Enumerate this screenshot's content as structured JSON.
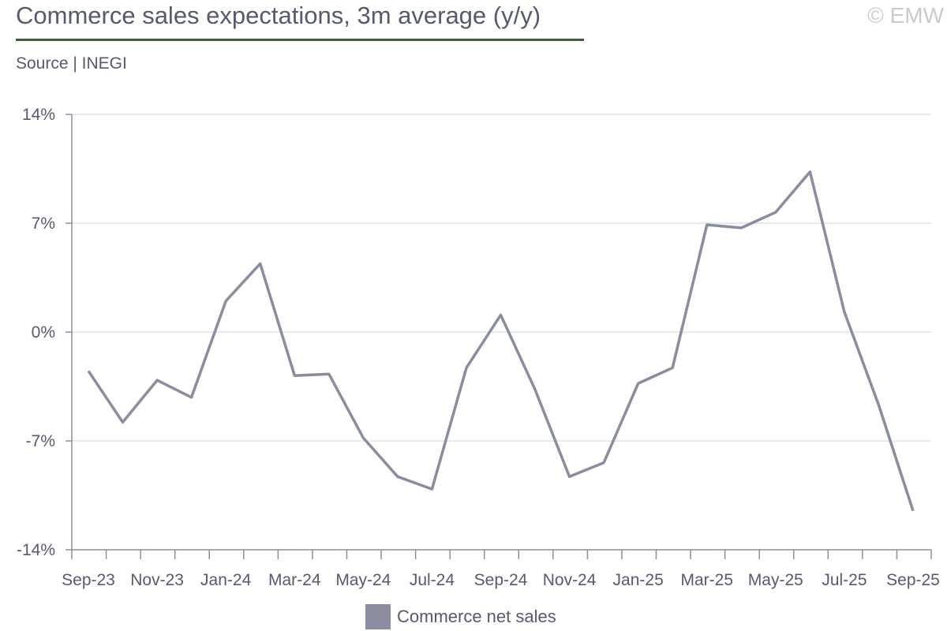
{
  "header": {
    "title": "Commerce sales expectations, 3m average (y/y)",
    "source": "Source | INEGI",
    "copyright": "© EMW"
  },
  "colors": {
    "line": "#8a8d9f",
    "grid": "#dce6ef",
    "axis": "#8a8d9f",
    "title_rule": "#2f6a2a"
  },
  "chart_data": {
    "type": "line",
    "title": "Commerce sales expectations, 3m average (y/y)",
    "xlabel": "",
    "ylabel": "",
    "ylim": [
      -14,
      14
    ],
    "yticks": [
      14,
      7,
      0,
      -7,
      -14
    ],
    "ytick_labels": [
      "14%",
      "7%",
      "0%",
      "-7%",
      "-14%"
    ],
    "grid": true,
    "legend": "bottom-center",
    "x": [
      "Sep-23",
      "Oct-23",
      "Nov-23",
      "Dec-23",
      "Jan-24",
      "Feb-24",
      "Mar-24",
      "Apr-24",
      "May-24",
      "Jun-24",
      "Jul-24",
      "Aug-24",
      "Sep-24",
      "Oct-24",
      "Nov-24",
      "Dec-24",
      "Jan-25",
      "Feb-25",
      "Mar-25",
      "Apr-25",
      "May-25",
      "Jun-25",
      "Jul-25",
      "Aug-25",
      "Sep-25"
    ],
    "xtick_labels": [
      "Sep-23",
      "Nov-23",
      "Jan-24",
      "Mar-24",
      "May-24",
      "Jul-24",
      "Sep-24",
      "Nov-24",
      "Jan-25",
      "Mar-25",
      "May-25",
      "Jul-25",
      "Sep-25"
    ],
    "series": [
      {
        "name": "Commerce net sales",
        "values": [
          -2.5,
          -5.8,
          -3.1,
          -4.2,
          2.0,
          4.4,
          -2.8,
          -2.7,
          -6.8,
          -9.3,
          -10.1,
          -2.3,
          1.1,
          -3.7,
          -9.3,
          -8.4,
          -3.3,
          -2.3,
          6.9,
          6.7,
          7.7,
          10.3,
          1.3,
          -4.7,
          -11.5
        ]
      }
    ]
  }
}
